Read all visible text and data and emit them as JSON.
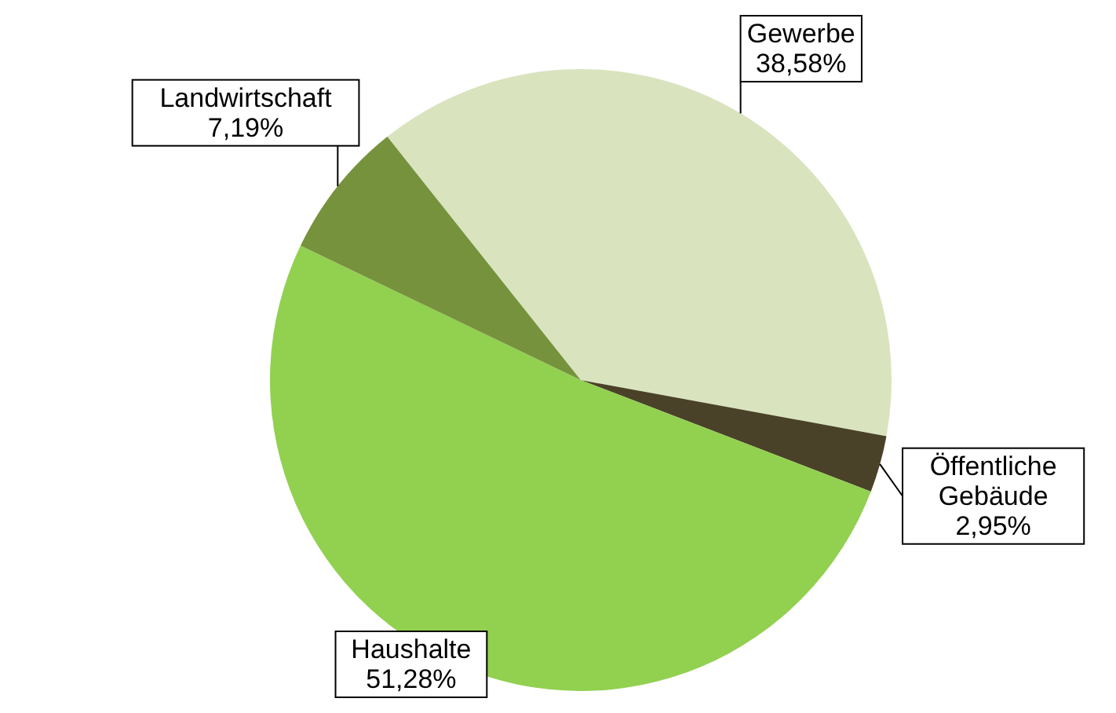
{
  "chart_data": {
    "type": "pie",
    "categories": [
      "Gewerbe",
      "Öffentliche Gebäude",
      "Haushalte",
      "Landwirtschaft"
    ],
    "values": [
      38.58,
      2.95,
      51.28,
      7.19
    ],
    "colors": [
      "#d9e4bf",
      "#4a4228",
      "#92d050",
      "#76923c"
    ],
    "value_labels": [
      "38,58%",
      "2,95%",
      "51,28%",
      "7,19%"
    ]
  }
}
